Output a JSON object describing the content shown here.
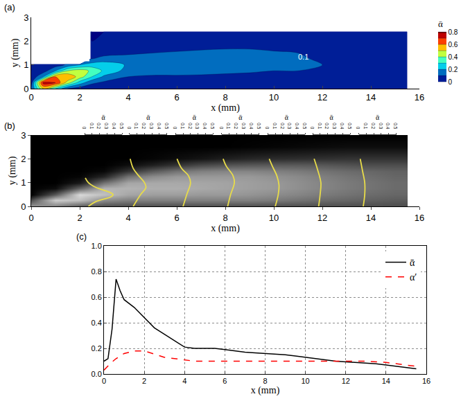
{
  "chart_data": [
    {
      "label": "(a)",
      "type": "contour",
      "x": [
        0,
        0.5,
        1,
        1.5,
        2,
        2.5,
        3,
        4,
        5,
        6,
        7,
        8,
        9,
        10,
        11,
        12,
        13,
        14,
        15,
        15.5
      ],
      "y": [
        0,
        0.25,
        0.5,
        0.75,
        1,
        1.25,
        1.5,
        1.75,
        2,
        2.4
      ],
      "z": [
        [
          0.1,
          0.5,
          0.3,
          0.1,
          0.05,
          0.03,
          0.02,
          0.02,
          0.02,
          0.02,
          0.02,
          0.02,
          0.02,
          0.02,
          0.02,
          0.02,
          0.02,
          0.02,
          0.02,
          0.02
        ],
        [
          0.05,
          0.75,
          0.7,
          0.45,
          0.25,
          0.12,
          0.08,
          0.05,
          0.05,
          0.05,
          0.05,
          0.05,
          0.05,
          0.04,
          0.04,
          0.04,
          0.04,
          0.04,
          0.03,
          0.03
        ],
        [
          0.02,
          0.2,
          0.6,
          0.6,
          0.45,
          0.3,
          0.18,
          0.1,
          0.09,
          0.09,
          0.09,
          0.08,
          0.08,
          0.07,
          0.07,
          0.06,
          0.06,
          0.06,
          0.05,
          0.05
        ],
        [
          0,
          0.05,
          0.2,
          0.4,
          0.45,
          0.38,
          0.28,
          0.16,
          0.13,
          0.13,
          0.12,
          0.12,
          0.11,
          0.1,
          0.1,
          0.09,
          0.08,
          0.08,
          0.07,
          0.07
        ],
        [
          0,
          0.01,
          0.05,
          0.12,
          0.2,
          0.25,
          0.25,
          0.19,
          0.16,
          0.15,
          0.14,
          0.14,
          0.13,
          0.12,
          0.11,
          0.1,
          0.09,
          0.08,
          0.07,
          0.07
        ],
        [
          null,
          null,
          null,
          null,
          null,
          0.1,
          0.15,
          0.15,
          0.15,
          0.15,
          0.15,
          0.14,
          0.13,
          0.12,
          0.11,
          0.09,
          0.08,
          0.07,
          0.06,
          0.06
        ],
        [
          null,
          null,
          null,
          null,
          null,
          0.02,
          0.05,
          0.08,
          0.1,
          0.11,
          0.12,
          0.12,
          0.12,
          0.11,
          0.1,
          0.08,
          0.07,
          0.06,
          0.05,
          0.05
        ],
        [
          null,
          null,
          null,
          null,
          null,
          0.01,
          0.02,
          0.03,
          0.05,
          0.07,
          0.08,
          0.09,
          0.09,
          0.08,
          0.07,
          0.06,
          0.05,
          0.05,
          0.04,
          0.04
        ],
        [
          null,
          null,
          null,
          null,
          null,
          0,
          0.01,
          0.01,
          0.02,
          0.03,
          0.04,
          0.05,
          0.05,
          0.05,
          0.04,
          0.04,
          0.03,
          0.03,
          0.03,
          0.03
        ],
        [
          null,
          null,
          null,
          null,
          null,
          0,
          0,
          0.01,
          0.01,
          0.02,
          0.02,
          0.02,
          0.02,
          0.02,
          0.02,
          0.02,
          0.02,
          0.02,
          0.02,
          0.02
        ]
      ],
      "contour_levels": [
        0,
        0.1,
        0.2,
        0.3,
        0.4,
        0.5,
        0.6,
        0.7,
        0.8
      ],
      "colorbar": {
        "title": "ᾱ",
        "range": [
          0,
          0.8
        ],
        "ticks": [
          0,
          0.2,
          0.4,
          0.6,
          0.8
        ]
      },
      "solid_region": {
        "x": [
          0,
          2.4
        ],
        "y": [
          1.15,
          2.4
        ]
      },
      "annotations": [
        {
          "text": "0.1",
          "x": 11.2,
          "y": 1.35
        }
      ],
      "xlim": [
        0,
        16
      ],
      "ylim": [
        0,
        3
      ],
      "xticks": [
        0,
        2,
        4,
        6,
        8,
        10,
        12,
        14,
        16
      ],
      "yticks": [
        0,
        1,
        2,
        3
      ],
      "x_label": "x (mm)",
      "y_label": "y (mm)"
    },
    {
      "label": "(b)",
      "type": "image",
      "x": [
        0,
        1,
        2,
        3,
        4,
        5,
        6,
        7,
        8,
        9,
        10,
        11,
        12,
        13,
        14,
        15
      ],
      "y": [
        0,
        0.25,
        0.5,
        0.75,
        1,
        1.25,
        1.5,
        1.75,
        2,
        2.5,
        3
      ],
      "intensity": [
        [
          0.6,
          0.5,
          0.35,
          0.3,
          0.3,
          0.3,
          0.3,
          0.3,
          0.3,
          0.3,
          0.3,
          0.3,
          0.3,
          0.3,
          0.3,
          0.3
        ],
        [
          0.3,
          0.8,
          0.75,
          0.55,
          0.5,
          0.5,
          0.5,
          0.5,
          0.5,
          0.5,
          0.48,
          0.45,
          0.42,
          0.4,
          0.38,
          0.36
        ],
        [
          0,
          0.35,
          0.85,
          0.75,
          0.65,
          0.62,
          0.62,
          0.6,
          0.6,
          0.58,
          0.55,
          0.52,
          0.48,
          0.45,
          0.42,
          0.4
        ],
        [
          0,
          0.05,
          0.4,
          0.7,
          0.7,
          0.68,
          0.68,
          0.66,
          0.64,
          0.62,
          0.6,
          0.56,
          0.52,
          0.48,
          0.45,
          0.42
        ],
        [
          0,
          0,
          0.1,
          0.45,
          0.65,
          0.66,
          0.66,
          0.65,
          0.64,
          0.62,
          0.6,
          0.56,
          0.52,
          0.48,
          0.45,
          0.42
        ],
        [
          0,
          0,
          0.02,
          0.15,
          0.45,
          0.55,
          0.6,
          0.6,
          0.6,
          0.6,
          0.57,
          0.54,
          0.5,
          0.46,
          0.43,
          0.4
        ],
        [
          0,
          0,
          0,
          0.03,
          0.2,
          0.35,
          0.45,
          0.5,
          0.52,
          0.52,
          0.5,
          0.48,
          0.45,
          0.42,
          0.4,
          0.38
        ],
        [
          0,
          0,
          0,
          0,
          0.05,
          0.12,
          0.2,
          0.28,
          0.32,
          0.34,
          0.35,
          0.35,
          0.34,
          0.32,
          0.3,
          0.3
        ],
        [
          0,
          0,
          0,
          0,
          0,
          0.02,
          0.05,
          0.08,
          0.12,
          0.15,
          0.17,
          0.18,
          0.19,
          0.2,
          0.2,
          0.2
        ],
        [
          0,
          0,
          0,
          0,
          0,
          0,
          0,
          0,
          0,
          0.01,
          0.02,
          0.03,
          0.04,
          0.05,
          0.05,
          0.05
        ],
        [
          0,
          0,
          0,
          0,
          0,
          0,
          0,
          0,
          0,
          0,
          0,
          0,
          0,
          0,
          0,
          0
        ]
      ],
      "color": "#e8dc4a",
      "profiles": [
        {
          "x_position": 2.2,
          "axis_title": "ᾱ",
          "xlim": [
            0,
            0.5
          ],
          "xticks": [
            0,
            0.1,
            0.2,
            0.3,
            0.4,
            0.5
          ],
          "y": [
            0,
            0.2,
            0.4,
            0.5,
            0.6,
            0.8,
            1.0,
            1.2
          ],
          "values": [
            0.05,
            0.15,
            0.35,
            0.38,
            0.33,
            0.15,
            0.05,
            0.01
          ]
        },
        {
          "x_position": 4.05,
          "axis_title": "ᾱ",
          "xlim": [
            0,
            0.5
          ],
          "xticks": [
            0,
            0.1,
            0.2,
            0.3,
            0.4,
            0.5
          ],
          "y": [
            0,
            0.5,
            0.8,
            1.0,
            1.3,
            1.6,
            2.0
          ],
          "values": [
            0.05,
            0.15,
            0.22,
            0.2,
            0.12,
            0.05,
            0.01
          ]
        },
        {
          "x_position": 5.95,
          "axis_title": "ᾱ",
          "xlim": [
            0,
            0.5
          ],
          "xticks": [
            0,
            0.1,
            0.2,
            0.3,
            0.4,
            0.5
          ],
          "y": [
            0,
            0.5,
            1.0,
            1.3,
            1.6,
            2.0
          ],
          "values": [
            0.1,
            0.15,
            0.2,
            0.17,
            0.08,
            0.02
          ]
        },
        {
          "x_position": 7.85,
          "axis_title": "ᾱ",
          "xlim": [
            0,
            0.5
          ],
          "xticks": [
            0,
            0.1,
            0.2,
            0.3,
            0.4,
            0.5
          ],
          "y": [
            0,
            0.5,
            1.0,
            1.3,
            1.7,
            2.0
          ],
          "values": [
            0.08,
            0.12,
            0.17,
            0.15,
            0.06,
            0.02
          ]
        },
        {
          "x_position": 9.75,
          "axis_title": "ᾱ",
          "xlim": [
            0,
            0.5
          ],
          "xticks": [
            0,
            0.1,
            0.2,
            0.3,
            0.4,
            0.5
          ],
          "y": [
            0,
            0.5,
            0.9,
            1.3,
            1.7,
            2.0
          ],
          "values": [
            0.1,
            0.14,
            0.15,
            0.12,
            0.06,
            0.02
          ]
        },
        {
          "x_position": 11.6,
          "axis_title": "ᾱ",
          "xlim": [
            0,
            0.5
          ],
          "xticks": [
            0,
            0.1,
            0.2,
            0.3,
            0.4,
            0.5
          ],
          "y": [
            0,
            0.5,
            1.0,
            1.5,
            2.0
          ],
          "values": [
            0.08,
            0.1,
            0.11,
            0.07,
            0.02
          ]
        },
        {
          "x_position": 13.5,
          "axis_title": "ᾱ",
          "xlim": [
            0,
            0.5
          ],
          "xticks": [
            0,
            0.1,
            0.2,
            0.3,
            0.4,
            0.5
          ],
          "y": [
            0,
            0.5,
            1.0,
            1.5,
            2.0
          ],
          "values": [
            0.06,
            0.08,
            0.08,
            0.05,
            0.02
          ]
        }
      ],
      "xlim": [
        0,
        16
      ],
      "ylim": [
        0,
        3
      ],
      "xticks": [
        0,
        2,
        4,
        6,
        8,
        10,
        12,
        14,
        16
      ],
      "yticks": [
        0,
        1,
        2,
        3
      ],
      "x_label": "x (mm)",
      "y_label": "y (mm)"
    },
    {
      "label": "(c)",
      "type": "line",
      "series": [
        {
          "name": "ᾱ",
          "color": "#000000",
          "line_style": "solid",
          "x": [
            0,
            0.2,
            0.4,
            0.6,
            0.8,
            1.0,
            1.5,
            2,
            2.5,
            3,
            3.5,
            4,
            4.5,
            5,
            5.5,
            6,
            6.5,
            7,
            7.5,
            8,
            8.5,
            9,
            9.5,
            10,
            10.5,
            11,
            11.5,
            12,
            12.5,
            13,
            13.5,
            14,
            14.5,
            15,
            15.5
          ],
          "values": [
            0.1,
            0.12,
            0.35,
            0.74,
            0.65,
            0.58,
            0.52,
            0.44,
            0.36,
            0.31,
            0.26,
            0.21,
            0.2,
            0.2,
            0.2,
            0.19,
            0.18,
            0.17,
            0.165,
            0.16,
            0.155,
            0.15,
            0.14,
            0.13,
            0.12,
            0.11,
            0.1,
            0.095,
            0.09,
            0.085,
            0.08,
            0.07,
            0.06,
            0.05,
            0.04
          ]
        },
        {
          "name": "α′",
          "color": "#ff0000",
          "line_style": "dash",
          "x": [
            0,
            0.3,
            0.6,
            1,
            1.5,
            2,
            2.5,
            3,
            3.5,
            4,
            4.5,
            5,
            6,
            7,
            8,
            9,
            10,
            11,
            12,
            13,
            14,
            15,
            15.5
          ],
          "values": [
            0.03,
            0.08,
            0.12,
            0.16,
            0.18,
            0.18,
            0.155,
            0.13,
            0.12,
            0.11,
            0.1,
            0.1,
            0.1,
            0.1,
            0.1,
            0.1,
            0.1,
            0.1,
            0.1,
            0.1,
            0.09,
            0.07,
            0.06
          ]
        }
      ],
      "xlim": [
        0,
        16
      ],
      "ylim": [
        0,
        1
      ],
      "xticks": [
        0,
        2,
        4,
        6,
        8,
        10,
        12,
        14,
        16
      ],
      "yticks": [
        {
          "value": 0,
          "label": "0.0"
        },
        {
          "value": 0.2,
          "label": "0.2"
        },
        {
          "value": 0.4,
          "label": "0.4"
        },
        {
          "value": 0.6,
          "label": "0.6"
        },
        {
          "value": 0.8,
          "label": "0.8"
        },
        {
          "value": 1,
          "label": "1.0"
        }
      ],
      "grid": true,
      "legend": "top right",
      "x_label": "x (mm)"
    }
  ]
}
